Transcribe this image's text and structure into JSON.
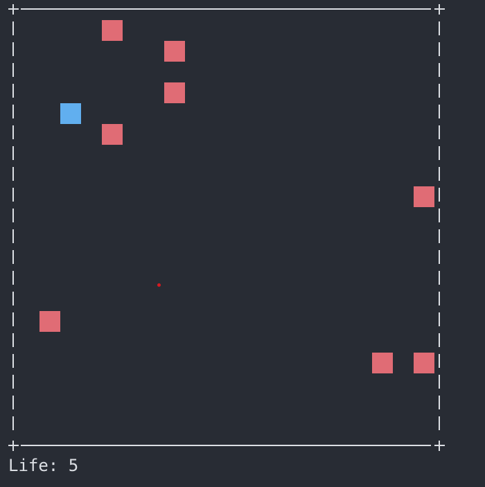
{
  "hud": {
    "life_label": "Life:",
    "life_value": 5,
    "life_text": "Life: 5"
  },
  "board": {
    "columns": 20,
    "rows": 20,
    "border_color": "#dcdfe4",
    "background_color": "#282c34",
    "enemy_color": "#e06c75",
    "player_color": "#61afef",
    "target_color": "#d71920",
    "player": {
      "col": 2,
      "row": 4
    },
    "enemies": [
      {
        "col": 4,
        "row": 0
      },
      {
        "col": 7,
        "row": 1
      },
      {
        "col": 7,
        "row": 3
      },
      {
        "col": 4,
        "row": 5
      },
      {
        "col": 19,
        "row": 8
      },
      {
        "col": 1,
        "row": 14
      },
      {
        "col": 17,
        "row": 16
      },
      {
        "col": 19,
        "row": 16
      }
    ],
    "target": {
      "col": 6.75,
      "row": 12.75
    }
  }
}
